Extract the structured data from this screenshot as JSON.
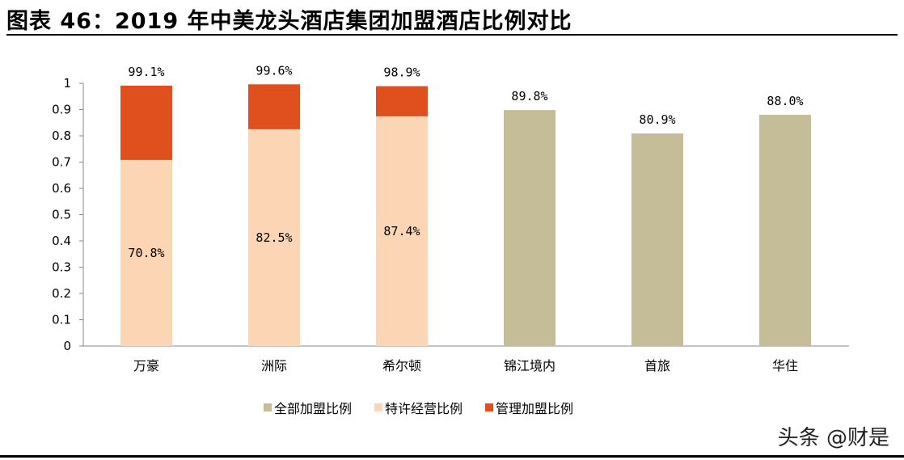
{
  "title": "图表 46：2019 年中美龙头酒店集团加盟酒店比例对比",
  "watermark": "头条 @财是",
  "colors": {
    "total": "#C4BD97",
    "franchise": "#FCD5B5",
    "managed": "#E0501F"
  },
  "chart_data": {
    "type": "bar",
    "stacked": true,
    "title": "",
    "xlabel": "",
    "ylabel": "",
    "ylim": [
      0,
      1
    ],
    "yticks": [
      "0",
      "0.1",
      "0.2",
      "0.3",
      "0.4",
      "0.5",
      "0.6",
      "0.7",
      "0.8",
      "0.9",
      "1"
    ],
    "grid": false,
    "legend_position": "bottom",
    "categories": [
      "万豪",
      "洲际",
      "希尔顿",
      "锦江境内",
      "首旅",
      "华住"
    ],
    "series": [
      {
        "name": "全部加盟比例",
        "key": "total",
        "values": [
          null,
          null,
          null,
          0.898,
          0.809,
          0.88
        ]
      },
      {
        "name": "特许经营比例",
        "key": "franchise",
        "values": [
          0.708,
          0.825,
          0.874,
          null,
          null,
          null
        ]
      },
      {
        "name": "管理加盟比例",
        "key": "managed",
        "values": [
          0.283,
          0.171,
          0.115,
          null,
          null,
          null
        ]
      }
    ],
    "top_labels": [
      "99.1%",
      "99.6%",
      "98.9%",
      "89.8%",
      "80.9%",
      "88.0%"
    ],
    "inner_labels": [
      "70.8%",
      "82.5%",
      "87.4%",
      "",
      "",
      ""
    ]
  }
}
